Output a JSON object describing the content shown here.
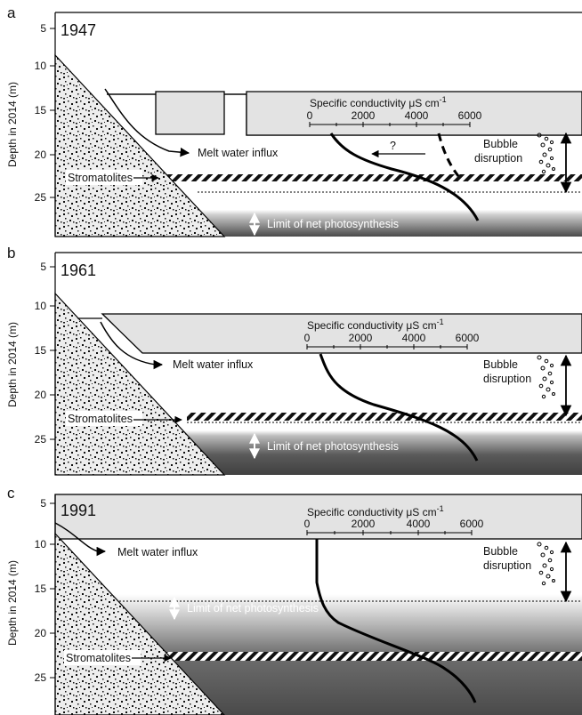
{
  "y_axis_label": "Depth in 2014 (m)",
  "conductivity_axis": {
    "title": "Specific conductivity μS cm",
    "title_sup": "-1",
    "ticks": [
      "0",
      "2000",
      "4000",
      "6000"
    ]
  },
  "labels": {
    "melt_water": "Melt water influx",
    "stromatolites": "Stromatolites",
    "limit": "Limit of net photosynthesis",
    "bubble_line1": "Bubble",
    "bubble_line2": "disruption",
    "question": "?"
  },
  "panels": [
    {
      "letter": "a",
      "year": "1947",
      "depth_ticks": [
        "5",
        "10",
        "15",
        "20",
        "25"
      ],
      "ice_depth_m": 13,
      "stromatolite_depth_m": 22.8,
      "photosynthesis_limit_depth_m": 26.2,
      "bubble_disruption_depth_m": 24.2
    },
    {
      "letter": "b",
      "year": "1961",
      "depth_ticks": [
        "5",
        "10",
        "15",
        "20",
        "25"
      ],
      "ice_depth_m": 15.3,
      "stromatolite_depth_m": 22.7,
      "photosynthesis_limit_depth_m": 24.8,
      "bubble_disruption_depth_m": 22.6
    },
    {
      "letter": "c",
      "year": "1991",
      "depth_ticks": [
        "5",
        "10",
        "15",
        "20",
        "25"
      ],
      "ice_depth_m": 9.3,
      "stromatolite_depth_m": 22.8,
      "photosynthesis_limit_depth_m": 18.4,
      "bubble_disruption_depth_m": 16.2
    }
  ],
  "colors": {
    "ice": "#e3e3e3",
    "dark_water": "#4a4a4a",
    "line": "#000000"
  }
}
